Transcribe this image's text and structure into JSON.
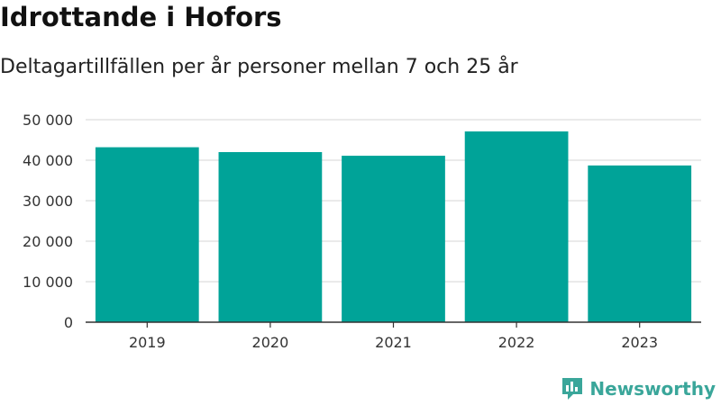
{
  "title": "Idrottande i Hofors",
  "subtitle": "Deltagartillfällen per år personer mellan 7 och 25 år",
  "brand": {
    "name": "Newsworthy",
    "icon": "newsworthy-logo-icon"
  },
  "colors": {
    "bar": "#00a398",
    "grid": "#dddddd",
    "axis": "#333333",
    "brand": "#3aa69a"
  },
  "chart_data": {
    "type": "bar",
    "title": "Idrottande i Hofors",
    "subtitle": "Deltagartillfällen per år personer mellan 7 och 25 år",
    "categories": [
      "2019",
      "2020",
      "2021",
      "2022",
      "2023"
    ],
    "values": [
      43200,
      42000,
      41100,
      47100,
      38700
    ],
    "ylim": [
      0,
      50000
    ],
    "yticks": [
      0,
      10000,
      20000,
      30000,
      40000,
      50000
    ],
    "ytick_labels": [
      "0",
      "10 000",
      "20 000",
      "30 000",
      "40 000",
      "50 000"
    ],
    "xlabel": "",
    "ylabel": "",
    "grid": true,
    "legend": "none"
  }
}
